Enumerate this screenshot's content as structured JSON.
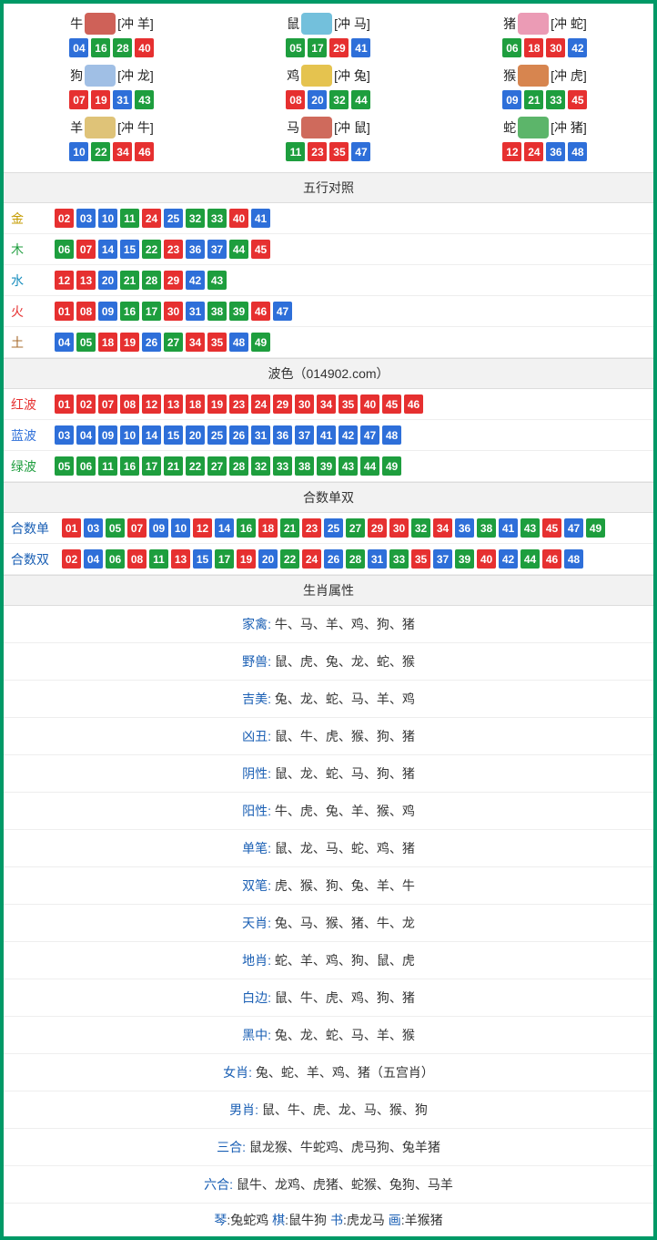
{
  "colors": {
    "red": "#e63030",
    "blue": "#2e6fd9",
    "green": "#1e9e3e",
    "orange": "#d97a00",
    "cyan": "#1a8fbf",
    "brown": "#a86c2e",
    "gold": "#c49b00",
    "link": "#1a5fb4",
    "border": "#009966"
  },
  "zodiac": [
    {
      "name": "牛",
      "conflict": "[冲 羊]",
      "iconColor": "#c7453b",
      "nums": [
        {
          "n": "04",
          "c": "blue"
        },
        {
          "n": "16",
          "c": "green"
        },
        {
          "n": "28",
          "c": "green"
        },
        {
          "n": "40",
          "c": "red"
        }
      ]
    },
    {
      "name": "鼠",
      "conflict": "[冲 马]",
      "iconColor": "#5ab5d6",
      "nums": [
        {
          "n": "05",
          "c": "green"
        },
        {
          "n": "17",
          "c": "green"
        },
        {
          "n": "29",
          "c": "red"
        },
        {
          "n": "41",
          "c": "blue"
        }
      ]
    },
    {
      "name": "猪",
      "conflict": "[冲 蛇]",
      "iconColor": "#e88aa8",
      "nums": [
        {
          "n": "06",
          "c": "green"
        },
        {
          "n": "18",
          "c": "red"
        },
        {
          "n": "30",
          "c": "red"
        },
        {
          "n": "42",
          "c": "blue"
        }
      ]
    },
    {
      "name": "狗",
      "conflict": "[冲 龙]",
      "iconColor": "#8fb4e0",
      "nums": [
        {
          "n": "07",
          "c": "red"
        },
        {
          "n": "19",
          "c": "red"
        },
        {
          "n": "31",
          "c": "blue"
        },
        {
          "n": "43",
          "c": "green"
        }
      ]
    },
    {
      "name": "鸡",
      "conflict": "[冲 兔]",
      "iconColor": "#e0b830",
      "nums": [
        {
          "n": "08",
          "c": "red"
        },
        {
          "n": "20",
          "c": "blue"
        },
        {
          "n": "32",
          "c": "green"
        },
        {
          "n": "44",
          "c": "green"
        }
      ]
    },
    {
      "name": "猴",
      "conflict": "[冲 虎]",
      "iconColor": "#d07030",
      "nums": [
        {
          "n": "09",
          "c": "blue"
        },
        {
          "n": "21",
          "c": "green"
        },
        {
          "n": "33",
          "c": "green"
        },
        {
          "n": "45",
          "c": "red"
        }
      ]
    },
    {
      "name": "羊",
      "conflict": "[冲 牛]",
      "iconColor": "#d9b860",
      "nums": [
        {
          "n": "10",
          "c": "blue"
        },
        {
          "n": "22",
          "c": "green"
        },
        {
          "n": "34",
          "c": "red"
        },
        {
          "n": "46",
          "c": "red"
        }
      ]
    },
    {
      "name": "马",
      "conflict": "[冲 鼠]",
      "iconColor": "#c75040",
      "nums": [
        {
          "n": "11",
          "c": "green"
        },
        {
          "n": "23",
          "c": "red"
        },
        {
          "n": "35",
          "c": "red"
        },
        {
          "n": "47",
          "c": "blue"
        }
      ]
    },
    {
      "name": "蛇",
      "conflict": "[冲 猪]",
      "iconColor": "#3fa850",
      "nums": [
        {
          "n": "12",
          "c": "red"
        },
        {
          "n": "24",
          "c": "red"
        },
        {
          "n": "36",
          "c": "blue"
        },
        {
          "n": "48",
          "c": "blue"
        }
      ]
    }
  ],
  "sections": {
    "wuxing": {
      "title": "五行对照",
      "rows": [
        {
          "label": "金",
          "labelColor": "#c49b00",
          "nums": [
            {
              "n": "02",
              "c": "red"
            },
            {
              "n": "03",
              "c": "blue"
            },
            {
              "n": "10",
              "c": "blue"
            },
            {
              "n": "11",
              "c": "green"
            },
            {
              "n": "24",
              "c": "red"
            },
            {
              "n": "25",
              "c": "blue"
            },
            {
              "n": "32",
              "c": "green"
            },
            {
              "n": "33",
              "c": "green"
            },
            {
              "n": "40",
              "c": "red"
            },
            {
              "n": "41",
              "c": "blue"
            }
          ]
        },
        {
          "label": "木",
          "labelColor": "#1e9e3e",
          "nums": [
            {
              "n": "06",
              "c": "green"
            },
            {
              "n": "07",
              "c": "red"
            },
            {
              "n": "14",
              "c": "blue"
            },
            {
              "n": "15",
              "c": "blue"
            },
            {
              "n": "22",
              "c": "green"
            },
            {
              "n": "23",
              "c": "red"
            },
            {
              "n": "36",
              "c": "blue"
            },
            {
              "n": "37",
              "c": "blue"
            },
            {
              "n": "44",
              "c": "green"
            },
            {
              "n": "45",
              "c": "red"
            }
          ]
        },
        {
          "label": "水",
          "labelColor": "#1a8fbf",
          "nums": [
            {
              "n": "12",
              "c": "red"
            },
            {
              "n": "13",
              "c": "red"
            },
            {
              "n": "20",
              "c": "blue"
            },
            {
              "n": "21",
              "c": "green"
            },
            {
              "n": "28",
              "c": "green"
            },
            {
              "n": "29",
              "c": "red"
            },
            {
              "n": "42",
              "c": "blue"
            },
            {
              "n": "43",
              "c": "green"
            }
          ]
        },
        {
          "label": "火",
          "labelColor": "#e63030",
          "nums": [
            {
              "n": "01",
              "c": "red"
            },
            {
              "n": "08",
              "c": "red"
            },
            {
              "n": "09",
              "c": "blue"
            },
            {
              "n": "16",
              "c": "green"
            },
            {
              "n": "17",
              "c": "green"
            },
            {
              "n": "30",
              "c": "red"
            },
            {
              "n": "31",
              "c": "blue"
            },
            {
              "n": "38",
              "c": "green"
            },
            {
              "n": "39",
              "c": "green"
            },
            {
              "n": "46",
              "c": "red"
            },
            {
              "n": "47",
              "c": "blue"
            }
          ]
        },
        {
          "label": "土",
          "labelColor": "#a86c2e",
          "nums": [
            {
              "n": "04",
              "c": "blue"
            },
            {
              "n": "05",
              "c": "green"
            },
            {
              "n": "18",
              "c": "red"
            },
            {
              "n": "19",
              "c": "red"
            },
            {
              "n": "26",
              "c": "blue"
            },
            {
              "n": "27",
              "c": "green"
            },
            {
              "n": "34",
              "c": "red"
            },
            {
              "n": "35",
              "c": "red"
            },
            {
              "n": "48",
              "c": "blue"
            },
            {
              "n": "49",
              "c": "green"
            }
          ]
        }
      ]
    },
    "bose": {
      "title": "波色（014902.com）",
      "rows": [
        {
          "label": "红波",
          "labelColor": "#e63030",
          "nums": [
            {
              "n": "01",
              "c": "red"
            },
            {
              "n": "02",
              "c": "red"
            },
            {
              "n": "07",
              "c": "red"
            },
            {
              "n": "08",
              "c": "red"
            },
            {
              "n": "12",
              "c": "red"
            },
            {
              "n": "13",
              "c": "red"
            },
            {
              "n": "18",
              "c": "red"
            },
            {
              "n": "19",
              "c": "red"
            },
            {
              "n": "23",
              "c": "red"
            },
            {
              "n": "24",
              "c": "red"
            },
            {
              "n": "29",
              "c": "red"
            },
            {
              "n": "30",
              "c": "red"
            },
            {
              "n": "34",
              "c": "red"
            },
            {
              "n": "35",
              "c": "red"
            },
            {
              "n": "40",
              "c": "red"
            },
            {
              "n": "45",
              "c": "red"
            },
            {
              "n": "46",
              "c": "red"
            }
          ]
        },
        {
          "label": "蓝波",
          "labelColor": "#2e6fd9",
          "nums": [
            {
              "n": "03",
              "c": "blue"
            },
            {
              "n": "04",
              "c": "blue"
            },
            {
              "n": "09",
              "c": "blue"
            },
            {
              "n": "10",
              "c": "blue"
            },
            {
              "n": "14",
              "c": "blue"
            },
            {
              "n": "15",
              "c": "blue"
            },
            {
              "n": "20",
              "c": "blue"
            },
            {
              "n": "25",
              "c": "blue"
            },
            {
              "n": "26",
              "c": "blue"
            },
            {
              "n": "31",
              "c": "blue"
            },
            {
              "n": "36",
              "c": "blue"
            },
            {
              "n": "37",
              "c": "blue"
            },
            {
              "n": "41",
              "c": "blue"
            },
            {
              "n": "42",
              "c": "blue"
            },
            {
              "n": "47",
              "c": "blue"
            },
            {
              "n": "48",
              "c": "blue"
            }
          ]
        },
        {
          "label": "绿波",
          "labelColor": "#1e9e3e",
          "nums": [
            {
              "n": "05",
              "c": "green"
            },
            {
              "n": "06",
              "c": "green"
            },
            {
              "n": "11",
              "c": "green"
            },
            {
              "n": "16",
              "c": "green"
            },
            {
              "n": "17",
              "c": "green"
            },
            {
              "n": "21",
              "c": "green"
            },
            {
              "n": "22",
              "c": "green"
            },
            {
              "n": "27",
              "c": "green"
            },
            {
              "n": "28",
              "c": "green"
            },
            {
              "n": "32",
              "c": "green"
            },
            {
              "n": "33",
              "c": "green"
            },
            {
              "n": "38",
              "c": "green"
            },
            {
              "n": "39",
              "c": "green"
            },
            {
              "n": "43",
              "c": "green"
            },
            {
              "n": "44",
              "c": "green"
            },
            {
              "n": "49",
              "c": "green"
            }
          ]
        }
      ]
    },
    "heshu": {
      "title": "合数单双",
      "rows": [
        {
          "label": "合数单",
          "labelColor": "#1a5fb4",
          "nums": [
            {
              "n": "01",
              "c": "red"
            },
            {
              "n": "03",
              "c": "blue"
            },
            {
              "n": "05",
              "c": "green"
            },
            {
              "n": "07",
              "c": "red"
            },
            {
              "n": "09",
              "c": "blue"
            },
            {
              "n": "10",
              "c": "blue"
            },
            {
              "n": "12",
              "c": "red"
            },
            {
              "n": "14",
              "c": "blue"
            },
            {
              "n": "16",
              "c": "green"
            },
            {
              "n": "18",
              "c": "red"
            },
            {
              "n": "21",
              "c": "green"
            },
            {
              "n": "23",
              "c": "red"
            },
            {
              "n": "25",
              "c": "blue"
            },
            {
              "n": "27",
              "c": "green"
            },
            {
              "n": "29",
              "c": "red"
            },
            {
              "n": "30",
              "c": "red"
            },
            {
              "n": "32",
              "c": "green"
            },
            {
              "n": "34",
              "c": "red"
            },
            {
              "n": "36",
              "c": "blue"
            },
            {
              "n": "38",
              "c": "green"
            },
            {
              "n": "41",
              "c": "blue"
            },
            {
              "n": "43",
              "c": "green"
            },
            {
              "n": "45",
              "c": "red"
            },
            {
              "n": "47",
              "c": "blue"
            },
            {
              "n": "49",
              "c": "green"
            }
          ]
        },
        {
          "label": "合数双",
          "labelColor": "#1a5fb4",
          "nums": [
            {
              "n": "02",
              "c": "red"
            },
            {
              "n": "04",
              "c": "blue"
            },
            {
              "n": "06",
              "c": "green"
            },
            {
              "n": "08",
              "c": "red"
            },
            {
              "n": "11",
              "c": "green"
            },
            {
              "n": "13",
              "c": "red"
            },
            {
              "n": "15",
              "c": "blue"
            },
            {
              "n": "17",
              "c": "green"
            },
            {
              "n": "19",
              "c": "red"
            },
            {
              "n": "20",
              "c": "blue"
            },
            {
              "n": "22",
              "c": "green"
            },
            {
              "n": "24",
              "c": "red"
            },
            {
              "n": "26",
              "c": "blue"
            },
            {
              "n": "28",
              "c": "green"
            },
            {
              "n": "31",
              "c": "blue"
            },
            {
              "n": "33",
              "c": "green"
            },
            {
              "n": "35",
              "c": "red"
            },
            {
              "n": "37",
              "c": "blue"
            },
            {
              "n": "39",
              "c": "green"
            },
            {
              "n": "40",
              "c": "red"
            },
            {
              "n": "42",
              "c": "blue"
            },
            {
              "n": "44",
              "c": "green"
            },
            {
              "n": "46",
              "c": "red"
            },
            {
              "n": "48",
              "c": "blue"
            }
          ]
        }
      ]
    },
    "attrs": {
      "title": "生肖属性",
      "rows": [
        {
          "label": "家禽",
          "value": "牛、马、羊、鸡、狗、猪"
        },
        {
          "label": "野兽",
          "value": "鼠、虎、兔、龙、蛇、猴"
        },
        {
          "label": "吉美",
          "value": "兔、龙、蛇、马、羊、鸡"
        },
        {
          "label": "凶丑",
          "value": "鼠、牛、虎、猴、狗、猪"
        },
        {
          "label": "阴性",
          "value": "鼠、龙、蛇、马、狗、猪"
        },
        {
          "label": "阳性",
          "value": "牛、虎、兔、羊、猴、鸡"
        },
        {
          "label": "单笔",
          "value": "鼠、龙、马、蛇、鸡、猪"
        },
        {
          "label": "双笔",
          "value": "虎、猴、狗、兔、羊、牛"
        },
        {
          "label": "天肖",
          "value": "兔、马、猴、猪、牛、龙"
        },
        {
          "label": "地肖",
          "value": "蛇、羊、鸡、狗、鼠、虎"
        },
        {
          "label": "白边",
          "value": "鼠、牛、虎、鸡、狗、猪"
        },
        {
          "label": "黑中",
          "value": "兔、龙、蛇、马、羊、猴"
        },
        {
          "label": "女肖",
          "value": "兔、蛇、羊、鸡、猪（五宫肖）"
        },
        {
          "label": "男肖",
          "value": "鼠、牛、虎、龙、马、猴、狗"
        },
        {
          "label": "三合",
          "value": "鼠龙猴、牛蛇鸡、虎马狗、兔羊猪"
        },
        {
          "label": "六合",
          "value": "鼠牛、龙鸡、虎猪、蛇猴、兔狗、马羊"
        }
      ]
    },
    "final": {
      "items": [
        {
          "k": "琴",
          "v": ":兔蛇鸡"
        },
        {
          "k": "棋",
          "v": ":鼠牛狗"
        },
        {
          "k": "书",
          "v": ":虎龙马"
        },
        {
          "k": "画",
          "v": ":羊猴猪"
        }
      ]
    }
  }
}
